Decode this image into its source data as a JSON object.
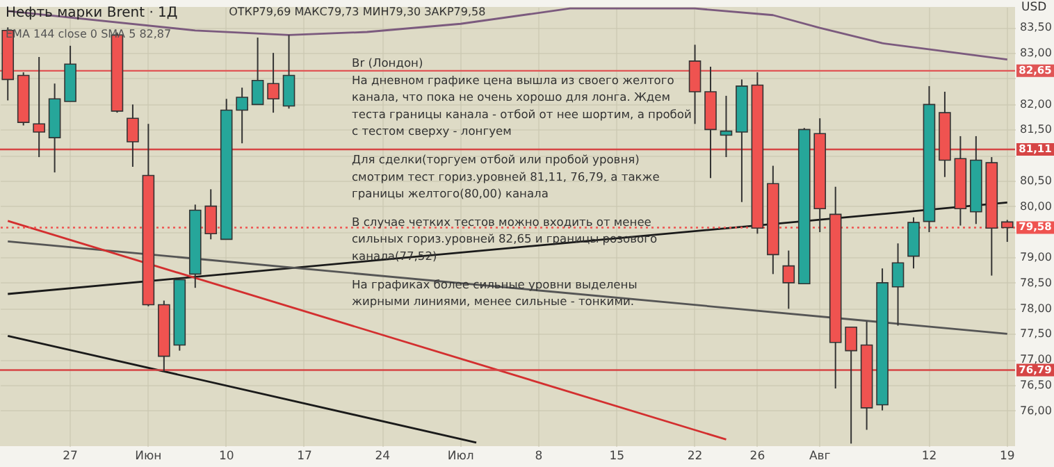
{
  "chart_data": {
    "type": "candlestick",
    "title": "Нефть марки Brent · 1Д",
    "subtitle": "ОТКР79,69 МАКС79,73 МИН79,30 ЗАКР79,58",
    "ylabel": "USD",
    "annotations": [
      "EMA 144 close 0 SMA 5 82,87",
      "Br (Лондон)\nНа дневном графике цена вышла из своего желтого\nканала, что пока не очень хорошо для лонга. Ждем\nтеста границы канала - отбой от нее шортим, а пробой\nс тестом сверху - лонгуем",
      "Для сделки(торгуем отбой или пробой уровня)\nсмотрим тест гориз.уровней 81,11, 76,79, а также\nграницы желтого(80,00) канала",
      "В случае четких тестов можно входить от менее\nсильных гориз.уровней 82,65 и границы розового\nканала(77,52)",
      "На графиках более сильные уровни выделены\nжирными линиями, менее сильные - тонкими."
    ],
    "categories": [
      null,
      null,
      null,
      null,
      "27",
      null,
      null,
      null,
      null,
      "Июн",
      null,
      null,
      null,
      null,
      "10",
      null,
      null,
      null,
      null,
      "17",
      null,
      null,
      null,
      null,
      "24",
      null,
      null,
      null,
      null,
      "Июл",
      null,
      null,
      null,
      null,
      "8",
      null,
      null,
      null,
      null,
      "15",
      null,
      null,
      null,
      null,
      "22",
      null,
      null,
      null,
      "26",
      null,
      null,
      null,
      "Авг",
      null,
      null,
      null,
      null,
      null,
      null,
      "12",
      null,
      null,
      null,
      null,
      "19"
    ],
    "ohlc": [
      [
        83.44,
        83.5,
        82.07,
        82.48
      ],
      [
        82.56,
        82.62,
        81.58,
        81.64
      ],
      [
        81.61,
        82.92,
        80.96,
        81.45
      ],
      [
        81.34,
        82.4,
        80.66,
        82.1
      ],
      [
        82.05,
        83.14,
        82.05,
        82.78
      ],
      null,
      null,
      [
        83.35,
        83.4,
        81.83,
        81.86
      ],
      [
        81.72,
        81.99,
        80.77,
        81.26
      ],
      [
        80.6,
        81.61,
        78.04,
        78.07
      ],
      [
        78.07,
        78.15,
        76.76,
        77.06
      ],
      [
        77.28,
        78.56,
        77.17,
        78.56
      ],
      [
        78.67,
        80.03,
        78.4,
        79.92
      ],
      [
        80.0,
        80.33,
        79.35,
        79.46
      ],
      [
        79.35,
        82.1,
        79.35,
        81.88
      ],
      [
        81.88,
        82.32,
        81.23,
        82.13
      ],
      [
        81.99,
        83.3,
        81.99,
        82.46
      ],
      [
        82.4,
        83.0,
        81.83,
        82.1
      ],
      [
        81.96,
        83.35,
        81.91,
        82.56
      ],
      null,
      null,
      null,
      null,
      null,
      null,
      null,
      null,
      null,
      null,
      null,
      null,
      null,
      null,
      null,
      null,
      null,
      null,
      null,
      null,
      null,
      null,
      null,
      null,
      null,
      [
        82.84,
        83.16,
        81.61,
        82.24
      ],
      [
        82.24,
        82.73,
        80.55,
        81.5
      ],
      [
        81.39,
        82.16,
        80.96,
        81.47
      ],
      [
        81.45,
        82.48,
        80.08,
        82.35
      ],
      [
        82.37,
        82.62,
        79.46,
        79.57
      ],
      [
        80.44,
        80.79,
        78.67,
        79.05
      ],
      [
        78.83,
        79.13,
        77.99,
        78.5
      ],
      [
        78.48,
        81.53,
        78.48,
        81.5
      ],
      [
        81.42,
        81.72,
        79.49,
        79.95
      ],
      [
        79.84,
        80.38,
        76.43,
        77.33
      ],
      [
        77.63,
        77.63,
        75.35,
        77.17
      ],
      [
        77.28,
        77.74,
        75.62,
        76.05
      ],
      [
        76.11,
        78.78,
        76.0,
        78.5
      ],
      [
        78.42,
        79.27,
        77.66,
        78.89
      ],
      [
        79.02,
        79.78,
        78.78,
        79.68
      ],
      [
        79.7,
        82.35,
        79.49,
        81.99
      ],
      [
        81.83,
        82.24,
        80.57,
        80.9
      ],
      [
        80.93,
        81.37,
        79.62,
        79.95
      ],
      [
        79.89,
        81.37,
        79.65,
        80.9
      ],
      [
        80.85,
        80.96,
        78.64,
        79.57
      ],
      [
        79.69,
        79.73,
        79.3,
        79.58
      ]
    ],
    "colors": [
      "#ef5350",
      "#ef5350",
      "#ef5350",
      "#26a69a",
      "#26a69a",
      null,
      null,
      "#ef5350",
      "#ef5350",
      "#ef5350",
      "#ef5350",
      "#26a69a",
      "#26a69a",
      "#ef5350",
      "#26a69a",
      "#26a69a",
      "#26a69a",
      "#ef5350",
      "#26a69a",
      null,
      null,
      null,
      null,
      null,
      null,
      null,
      null,
      null,
      null,
      null,
      null,
      null,
      null,
      null,
      null,
      null,
      null,
      null,
      null,
      null,
      null,
      null,
      null,
      null,
      "#ef5350",
      "#ef5350",
      "#26a69a",
      "#26a69a",
      "#ef5350",
      "#ef5350",
      "#ef5350",
      "#26a69a",
      "#ef5350",
      "#ef5350",
      "#ef5350",
      "#ef5350",
      "#26a69a",
      "#26a69a",
      "#26a69a",
      "#26a69a",
      "#ef5350",
      "#ef5350",
      "#26a69a",
      "#ef5350",
      "#ef5350"
    ],
    "series": [
      {
        "type": "line",
        "color": "#7b5a7e",
        "values": [
          83.82,
          null,
          null,
          null,
          null,
          null,
          null,
          null,
          null,
          null,
          null,
          null,
          83.44,
          null,
          null,
          null,
          null,
          null,
          83.35,
          null,
          null,
          null,
          null,
          83.41,
          null,
          null,
          null,
          null,
          null,
          83.57,
          null,
          null,
          null,
          null,
          null,
          null,
          83.87,
          null,
          null,
          null,
          null,
          null,
          null,
          null,
          83.87,
          null,
          null,
          null,
          null,
          83.74,
          null,
          null,
          83.49,
          null,
          null,
          null,
          83.19,
          null,
          null,
          null,
          83.03,
          null,
          null,
          null,
          82.87
        ]
      },
      {
        "type": "line",
        "color": "#1a1a1a",
        "values": [
          78.28,
          null,
          null,
          null,
          null,
          null,
          null,
          null,
          null,
          null,
          null,
          null,
          null,
          null,
          null,
          null,
          null,
          null,
          null,
          null,
          null,
          null,
          null,
          null,
          null,
          null,
          null,
          null,
          null,
          null,
          null,
          null,
          null,
          null,
          null,
          null,
          null,
          null,
          null,
          null,
          null,
          null,
          null,
          null,
          null,
          null,
          null,
          null,
          null,
          null,
          null,
          null,
          null,
          null,
          null,
          null,
          null,
          null,
          null,
          null,
          null,
          null,
          null,
          null,
          80.07
        ]
      },
      {
        "type": "line",
        "color": "#555555",
        "values": [
          79.31,
          null,
          null,
          null,
          null,
          null,
          null,
          null,
          null,
          null,
          null,
          null,
          null,
          null,
          null,
          null,
          null,
          null,
          null,
          null,
          null,
          null,
          null,
          null,
          null,
          null,
          null,
          null,
          null,
          null,
          null,
          null,
          null,
          null,
          null,
          null,
          null,
          null,
          null,
          null,
          null,
          null,
          null,
          null,
          null,
          null,
          null,
          null,
          null,
          null,
          null,
          null,
          null,
          null,
          null,
          null,
          null,
          null,
          null,
          null,
          null,
          null,
          null,
          null,
          77.5
        ]
      },
      {
        "type": "line",
        "color": "#1a1a1a",
        "values": [
          77.46,
          null,
          null,
          null,
          null,
          null,
          null,
          null,
          null,
          null,
          null,
          null,
          null,
          null,
          null,
          null,
          null,
          null,
          null,
          null,
          null,
          null,
          null,
          null,
          null,
          null,
          null,
          null,
          null,
          null,
          75.37,
          null,
          null,
          null,
          null,
          null,
          null,
          null,
          null,
          null,
          null,
          null,
          null,
          null,
          null,
          null,
          null,
          null,
          null,
          null,
          null,
          null,
          null,
          null,
          null,
          null,
          null,
          null,
          null,
          null,
          null,
          null,
          null,
          null,
          null
        ]
      },
      {
        "type": "line",
        "color": "#d32f2f",
        "values": [
          79.71,
          null,
          null,
          null,
          null,
          null,
          null,
          null,
          null,
          null,
          null,
          null,
          null,
          null,
          null,
          null,
          null,
          null,
          null,
          null,
          null,
          null,
          null,
          null,
          null,
          null,
          null,
          null,
          null,
          null,
          null,
          null,
          null,
          null,
          null,
          null,
          null,
          null,
          null,
          null,
          null,
          null,
          null,
          null,
          null,
          null,
          75.43,
          null,
          null,
          null,
          null,
          null,
          null,
          null,
          null,
          null,
          null,
          null,
          null,
          null,
          null,
          null,
          null,
          null,
          null
        ]
      }
    ],
    "ref_lines": [
      {
        "axis": "y",
        "value": 82.65,
        "label": "82,65",
        "color": "#e05555"
      },
      {
        "axis": "y",
        "value": 81.11,
        "label": "81,11",
        "color": "#d64545"
      },
      {
        "axis": "y",
        "value": 79.58,
        "label": "79,58",
        "color": "#ef5350",
        "line_style": "dotted"
      },
      {
        "axis": "y",
        "value": 76.79,
        "label": "76,79",
        "color": "#d64545"
      }
    ],
    "ylim": [
      75.3,
      83.9
    ],
    "yticks": [
      {
        "value": 76.0,
        "label": "76,00"
      },
      {
        "value": 76.5,
        "label": "76,50"
      },
      {
        "value": 77.0,
        "label": "77,00"
      },
      {
        "value": 77.5,
        "label": "77,50"
      },
      {
        "value": 78.0,
        "label": "78,00"
      },
      {
        "value": 78.5,
        "label": "78,50"
      },
      {
        "value": 79.0,
        "label": "79,00"
      },
      {
        "value": 79.5,
        "label": null
      },
      {
        "value": 80.0,
        "label": "80,00"
      },
      {
        "value": 80.5,
        "label": "80,50"
      },
      {
        "value": 81.0,
        "label": null
      },
      {
        "value": 81.5,
        "label": "81,50"
      },
      {
        "value": 82.0,
        "label": "82,00"
      },
      {
        "value": 82.5,
        "label": null
      },
      {
        "value": 83.0,
        "label": "83,00"
      },
      {
        "value": 83.5,
        "label": "83,50"
      }
    ],
    "grid": true,
    "line_style": "solid"
  }
}
